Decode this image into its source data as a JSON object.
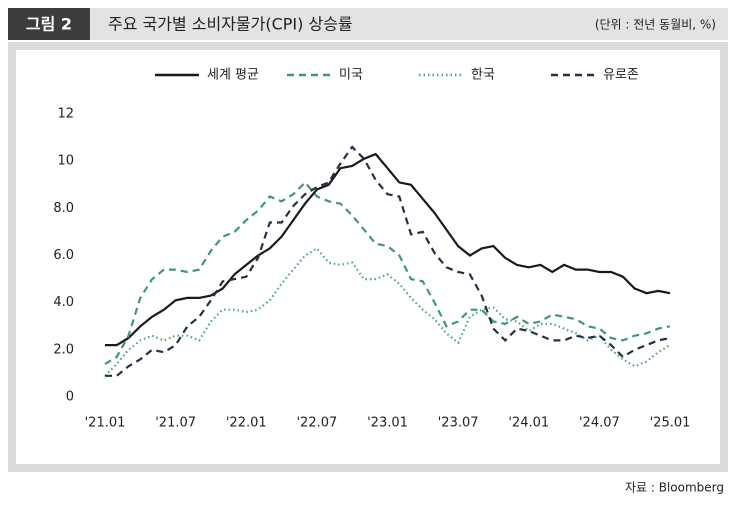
{
  "figure_label": "그림 2",
  "unit_note": "(단위 : 전년 동월비, %)",
  "source": "자료 : Bloomberg",
  "chart_data": {
    "type": "line",
    "title": "주요 국가별 소비자물가(CPI) 상승률",
    "categories": [
      "'21.01",
      null,
      null,
      null,
      null,
      null,
      "'21.07",
      null,
      null,
      null,
      null,
      null,
      "'22.01",
      null,
      null,
      null,
      null,
      null,
      "'22.07",
      null,
      null,
      null,
      null,
      null,
      "'23.01",
      null,
      null,
      null,
      null,
      null,
      "'23.07",
      null,
      null,
      null,
      null,
      null,
      "'24.01",
      null,
      null,
      null,
      null,
      null,
      "'24.07",
      null,
      null,
      null,
      null,
      null,
      "'25.01"
    ],
    "ylim": [
      0,
      12
    ],
    "yticks": [
      0,
      {
        "value": 2,
        "label": "2.0"
      },
      {
        "value": 4,
        "label": "4.0"
      },
      {
        "value": 6,
        "label": "6.0"
      },
      {
        "value": 8,
        "label": "8.0"
      },
      10,
      12
    ],
    "grid": false,
    "series": [
      {
        "name": "세계 평균",
        "color": "#1a1a1a",
        "style": "solid",
        "values": [
          2.2,
          2.2,
          2.5,
          3.0,
          3.4,
          3.7,
          4.1,
          4.2,
          4.2,
          4.3,
          4.6,
          5.2,
          5.6,
          6.0,
          6.3,
          6.8,
          7.5,
          8.2,
          8.8,
          9.0,
          9.7,
          9.8,
          10.1,
          10.3,
          9.7,
          9.1,
          9.0,
          8.4,
          7.8,
          7.1,
          6.4,
          6.0,
          6.3,
          6.4,
          5.9,
          5.6,
          5.5,
          5.6,
          5.3,
          5.6,
          5.4,
          5.4,
          5.3,
          5.3,
          5.1,
          4.6,
          4.4,
          4.5,
          4.4
        ]
      },
      {
        "name": "미국",
        "color": "#3a9a78",
        "style": "dashed",
        "values": [
          1.4,
          1.7,
          2.6,
          4.2,
          5.0,
          5.4,
          5.4,
          5.3,
          5.4,
          6.2,
          6.8,
          7.0,
          7.5,
          7.9,
          8.5,
          8.3,
          8.6,
          9.1,
          8.5,
          8.3,
          8.2,
          7.7,
          7.1,
          6.5,
          6.4,
          6.0,
          5.0,
          4.9,
          4.0,
          3.0,
          3.2,
          3.7,
          3.7,
          3.2,
          3.1,
          3.4,
          3.1,
          3.2,
          3.5,
          3.4,
          3.3,
          3.0,
          2.9,
          2.5,
          2.4,
          2.6,
          2.7,
          2.9,
          3.0
        ]
      },
      {
        "name": "한국",
        "color": "#4aa57e",
        "style": "dotted",
        "values": [
          0.9,
          1.4,
          2.0,
          2.4,
          2.6,
          2.4,
          2.6,
          2.6,
          2.4,
          3.2,
          3.7,
          3.7,
          3.6,
          3.7,
          4.1,
          4.8,
          5.4,
          6.0,
          6.3,
          5.7,
          5.6,
          5.7,
          5.0,
          5.0,
          5.2,
          4.8,
          4.2,
          3.7,
          3.3,
          2.7,
          2.3,
          3.4,
          3.7,
          3.8,
          3.3,
          3.2,
          2.8,
          3.1,
          3.1,
          2.9,
          2.7,
          2.4,
          2.6,
          2.0,
          1.6,
          1.3,
          1.5,
          1.9,
          2.2
        ]
      },
      {
        "name": "유로존",
        "color": "#22304a",
        "style": "dashed",
        "values": [
          0.9,
          0.9,
          1.3,
          1.6,
          2.0,
          1.9,
          2.2,
          3.0,
          3.4,
          4.1,
          4.9,
          5.0,
          5.1,
          5.9,
          7.4,
          7.4,
          8.1,
          8.6,
          8.9,
          9.1,
          9.9,
          10.6,
          10.1,
          9.2,
          8.6,
          8.5,
          6.9,
          7.0,
          6.1,
          5.5,
          5.3,
          5.2,
          4.3,
          2.9,
          2.4,
          2.9,
          2.8,
          2.6,
          2.4,
          2.4,
          2.6,
          2.5,
          2.6,
          2.2,
          1.7,
          2.0,
          2.2,
          2.4,
          2.5
        ]
      }
    ]
  }
}
